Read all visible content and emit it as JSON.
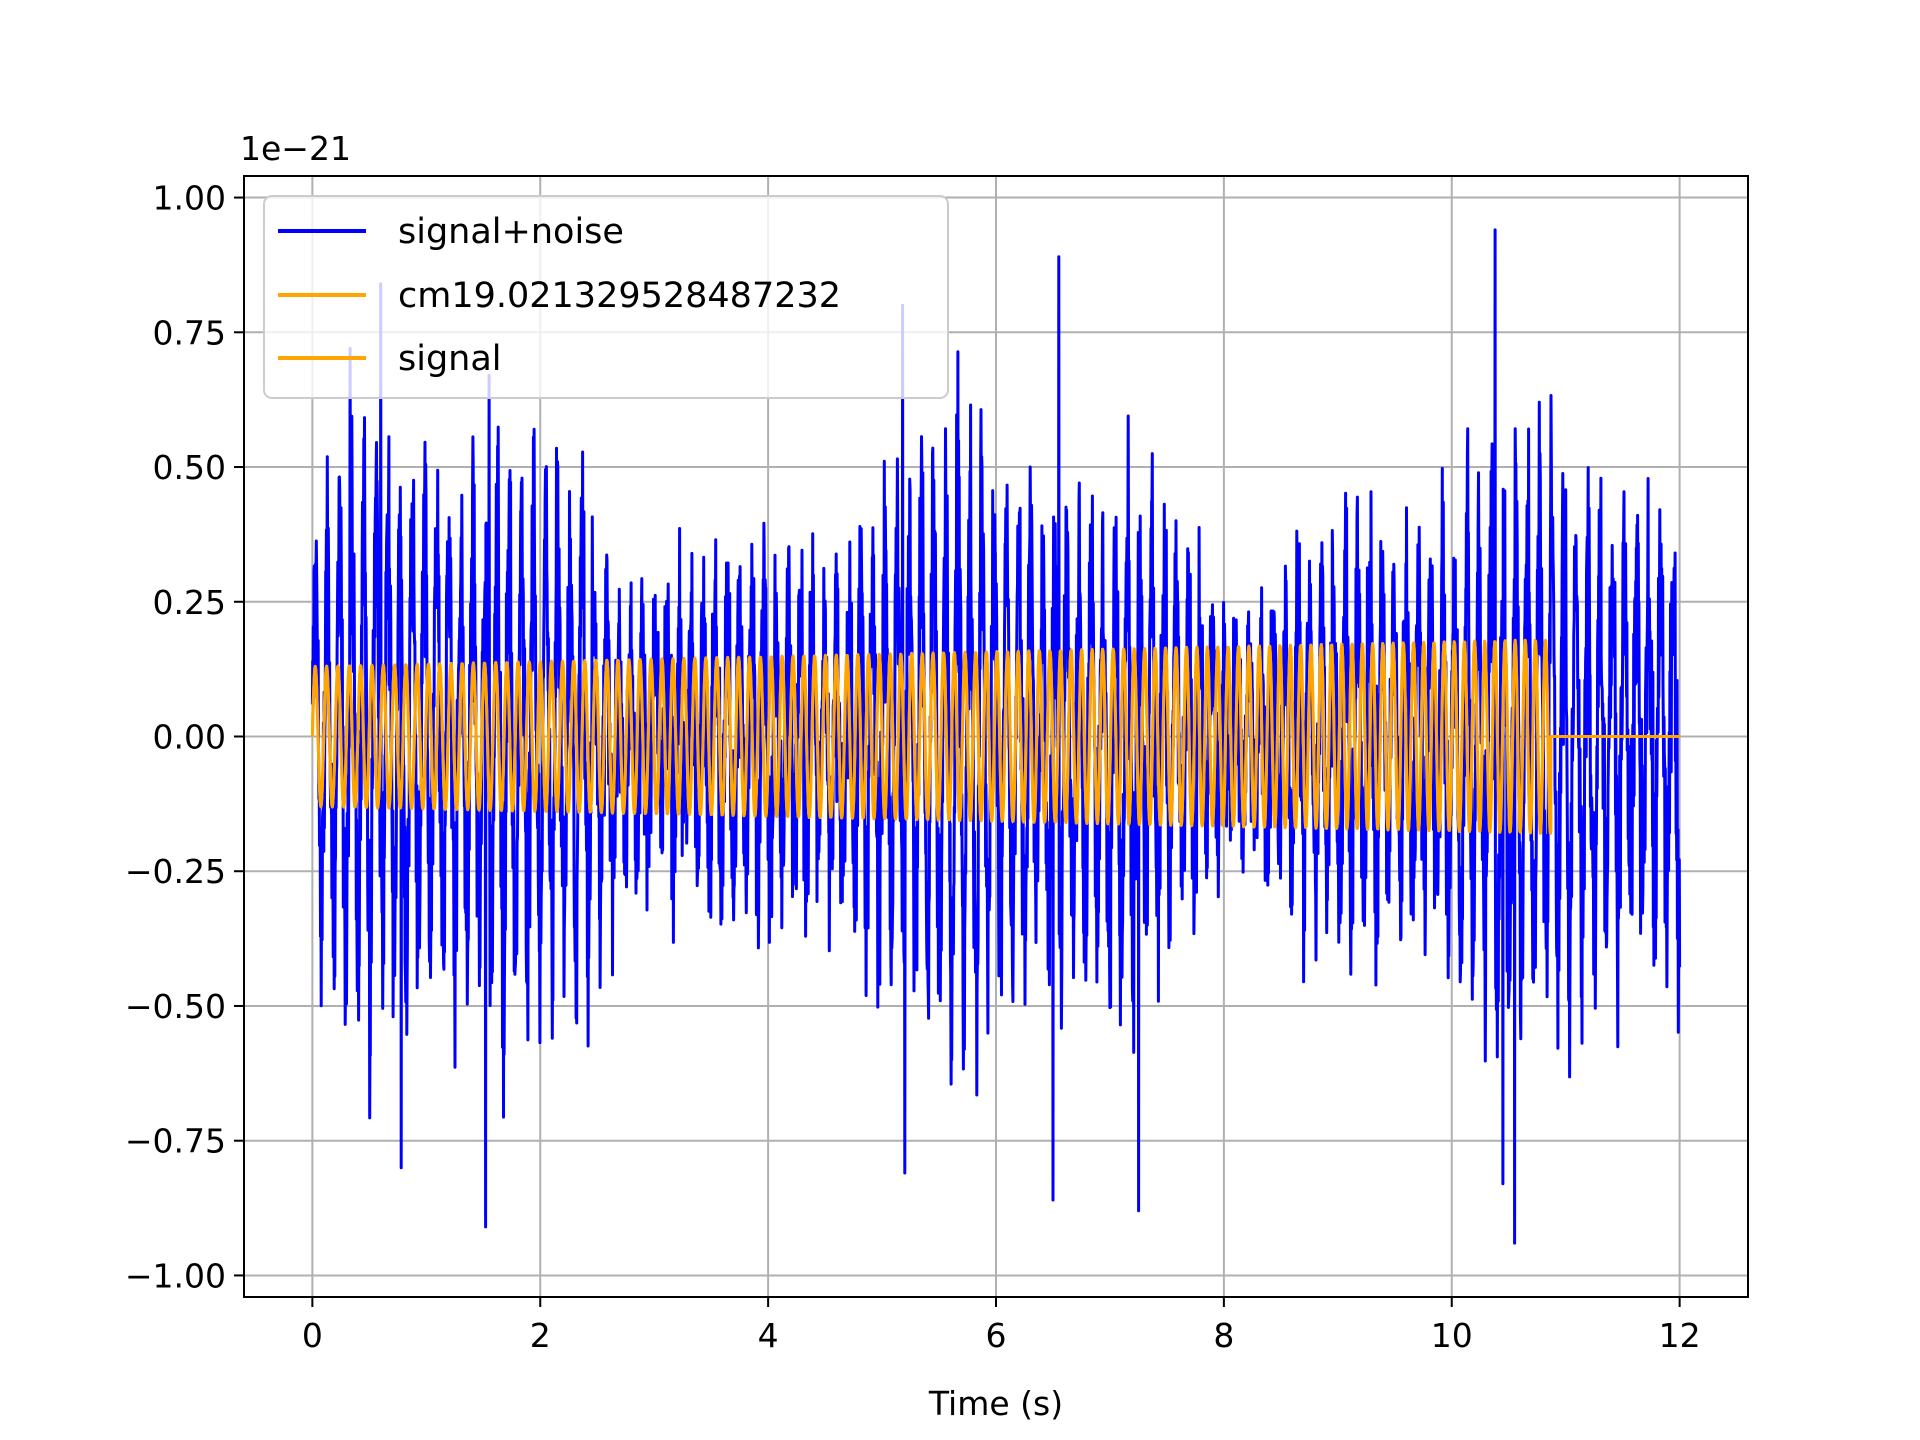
{
  "chart_data": {
    "type": "line",
    "xlabel": "Time (s)",
    "ylabel": "",
    "offset_label": "1e−21",
    "xlim": [
      -0.6,
      12.6
    ],
    "ylim": [
      -1.04,
      1.04
    ],
    "xticks": [
      0,
      2,
      4,
      6,
      8,
      10,
      12
    ],
    "xtick_labels": [
      "0",
      "2",
      "4",
      "6",
      "8",
      "10",
      "12"
    ],
    "yticks": [
      -1.0,
      -0.75,
      -0.5,
      -0.25,
      0.0,
      0.25,
      0.5,
      0.75,
      1.0
    ],
    "ytick_labels": [
      "−1.00",
      "−0.75",
      "−0.50",
      "−0.25",
      "0.00",
      "0.25",
      "0.50",
      "0.75",
      "1.00"
    ],
    "grid": true,
    "legend_position": "upper-left",
    "series": [
      {
        "name": "signal+noise",
        "color": "#0000ff",
        "description_values": {
          "x_range": [
            0,
            12
          ],
          "approx_amplitude_range": [
            -0.94,
            0.94
          ],
          "peaks": [
            [
              0.33,
              0.72
            ],
            [
              0.6,
              0.84
            ],
            [
              1.52,
              -0.91
            ],
            [
              1.55,
              0.67
            ],
            [
              5.18,
              0.8
            ],
            [
              5.2,
              -0.81
            ],
            [
              6.55,
              0.89
            ],
            [
              6.5,
              -0.86
            ],
            [
              7.25,
              -0.88
            ],
            [
              10.38,
              0.94
            ],
            [
              10.55,
              -0.94
            ],
            [
              10.45,
              -0.83
            ],
            [
              0.78,
              -0.8
            ]
          ]
        }
      },
      {
        "name": "cm19.021329528487232",
        "color": "#ffa500",
        "description_values": {
          "x_range": [
            0,
            10.87
          ],
          "amplitude_start": 0.13,
          "amplitude_end": 0.18
        }
      },
      {
        "name": "signal",
        "color": "#ffa500",
        "description_values": {
          "x_range": [
            0,
            12
          ],
          "amplitude_start": 0.13,
          "amplitude_end": 0.18,
          "ends_at": 10.87,
          "value_after_end": 0.0
        }
      }
    ]
  }
}
